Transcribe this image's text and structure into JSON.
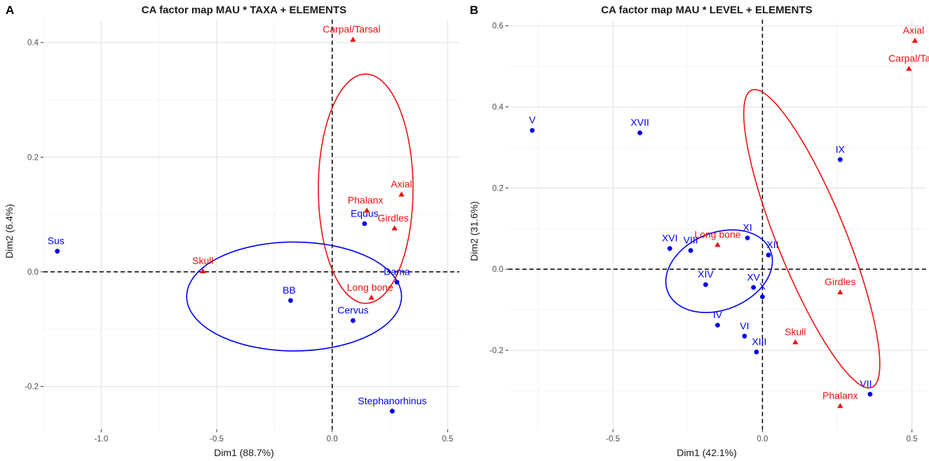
{
  "colors": {
    "row": "#0000ee",
    "col": "#ee1111",
    "grid_major": "#e4e4e4",
    "grid_minor": "#f2f2f2",
    "tick": "#333333"
  },
  "chart_data": [
    {
      "type": "scatter",
      "panel": "A",
      "title": "CA factor map MAU * TAXA + ELEMENTS",
      "xlabel": "Dim1 (88.7%)",
      "ylabel": "Dim2 (6.4%)",
      "xlim": [
        -1.25,
        0.55
      ],
      "ylim": [
        -0.275,
        0.44
      ],
      "xticks": [
        -1.0,
        -0.5,
        0.0,
        0.5
      ],
      "xtick_labels": [
        "-1.0",
        "-0.5",
        "0.0",
        "0.5"
      ],
      "yticks": [
        -0.2,
        0.0,
        0.2,
        0.4
      ],
      "ytick_labels": [
        "-0.2",
        "0.0",
        "0.2",
        "0.4"
      ],
      "grid": true,
      "series": [
        {
          "name": "rows",
          "marker": "circle",
          "color": "#0000ee",
          "points": [
            {
              "label": "Sus",
              "x": -1.19,
              "y": 0.036
            },
            {
              "label": "Equus",
              "x": 0.14,
              "y": 0.084
            },
            {
              "label": "Dama",
              "x": 0.28,
              "y": -0.018
            },
            {
              "label": "BB",
              "x": -0.18,
              "y": -0.05
            },
            {
              "label": "Cervus",
              "x": 0.09,
              "y": -0.085
            },
            {
              "label": "Stephanorhinus",
              "x": 0.26,
              "y": -0.243
            }
          ]
        },
        {
          "name": "columns",
          "marker": "triangle",
          "color": "#ee1111",
          "points": [
            {
              "label": "Carpal/Tarsal",
              "x": 0.09,
              "y": 0.405
            },
            {
              "label": "Axial",
              "x": 0.3,
              "y": 0.135
            },
            {
              "label": "Phalanx",
              "x": 0.15,
              "y": 0.107
            },
            {
              "label": "Girdles",
              "x": 0.27,
              "y": 0.076
            },
            {
              "label": "Skull",
              "x": -0.56,
              "y": 0.001
            },
            {
              "label": "Long bone",
              "x": 0.17,
              "y": -0.045
            }
          ]
        }
      ],
      "ellipses": [
        {
          "series": "columns",
          "cx": 0.145,
          "cy": 0.145,
          "rx": 0.205,
          "ry": 0.2,
          "rotation_deg": 0
        },
        {
          "series": "rows",
          "cx": -0.165,
          "cy": -0.043,
          "rx": 0.465,
          "ry": 0.095,
          "rotation_deg": 0
        }
      ]
    },
    {
      "type": "scatter",
      "panel": "B",
      "title": "CA factor map MAU * LEVEL + ELEMENTS",
      "xlabel": "Dim1 (42.1%)",
      "ylabel": "Dim2 (31.6%)",
      "xlim": [
        -0.85,
        0.55
      ],
      "ylim": [
        -0.395,
        0.615
      ],
      "xticks": [
        -0.5,
        0.0,
        0.5
      ],
      "xtick_labels": [
        "-0.5",
        "0.0",
        "0.5"
      ],
      "yticks": [
        -0.2,
        0.0,
        0.2,
        0.4,
        0.6
      ],
      "ytick_labels": [
        "-0.2",
        "0.0",
        "0.2",
        "0.4",
        "0.6"
      ],
      "grid": true,
      "series": [
        {
          "name": "rows",
          "marker": "circle",
          "color": "#0000ee",
          "points": [
            {
              "label": "V",
              "x": -0.77,
              "y": 0.342
            },
            {
              "label": "XVII",
              "x": -0.41,
              "y": 0.336
            },
            {
              "label": "IX",
              "x": 0.26,
              "y": 0.27
            },
            {
              "label": "XVI",
              "x": -0.31,
              "y": 0.051
            },
            {
              "label": "VIII",
              "x": -0.24,
              "y": 0.046
            },
            {
              "label": "XI",
              "x": -0.05,
              "y": 0.077
            },
            {
              "label": "XII",
              "x": 0.02,
              "y": 0.035
            },
            {
              "label": "XIV",
              "x": -0.19,
              "y": -0.038
            },
            {
              "label": "XV",
              "x": -0.03,
              "y": -0.045
            },
            {
              "label": "X",
              "x": 0.0,
              "y": -0.068
            },
            {
              "label": "IV",
              "x": -0.15,
              "y": -0.138
            },
            {
              "label": "VI",
              "x": -0.06,
              "y": -0.165
            },
            {
              "label": "XIII",
              "x": -0.02,
              "y": -0.204
            },
            {
              "label": "VII",
              "x": 0.36,
              "y": -0.308
            }
          ]
        },
        {
          "name": "columns",
          "marker": "triangle",
          "color": "#ee1111",
          "points": [
            {
              "label": "Axial",
              "x": 0.51,
              "y": 0.563
            },
            {
              "label": "Carpal/Tarsal",
              "x": 0.49,
              "y": 0.494
            },
            {
              "label": "Long bone",
              "x": -0.15,
              "y": 0.06
            },
            {
              "label": "Girdles",
              "x": 0.26,
              "y": -0.057
            },
            {
              "label": "Skull",
              "x": 0.11,
              "y": -0.18
            },
            {
              "label": "Phalanx",
              "x": 0.26,
              "y": -0.337
            }
          ]
        }
      ],
      "ellipses": [
        {
          "series": "columns",
          "cx": 0.165,
          "cy": 0.075,
          "rx": 0.115,
          "ry": 0.395,
          "rotation_deg": 22
        },
        {
          "series": "rows",
          "cx": -0.145,
          "cy": -0.005,
          "rx": 0.185,
          "ry": 0.095,
          "rotation_deg": 22
        }
      ]
    }
  ]
}
